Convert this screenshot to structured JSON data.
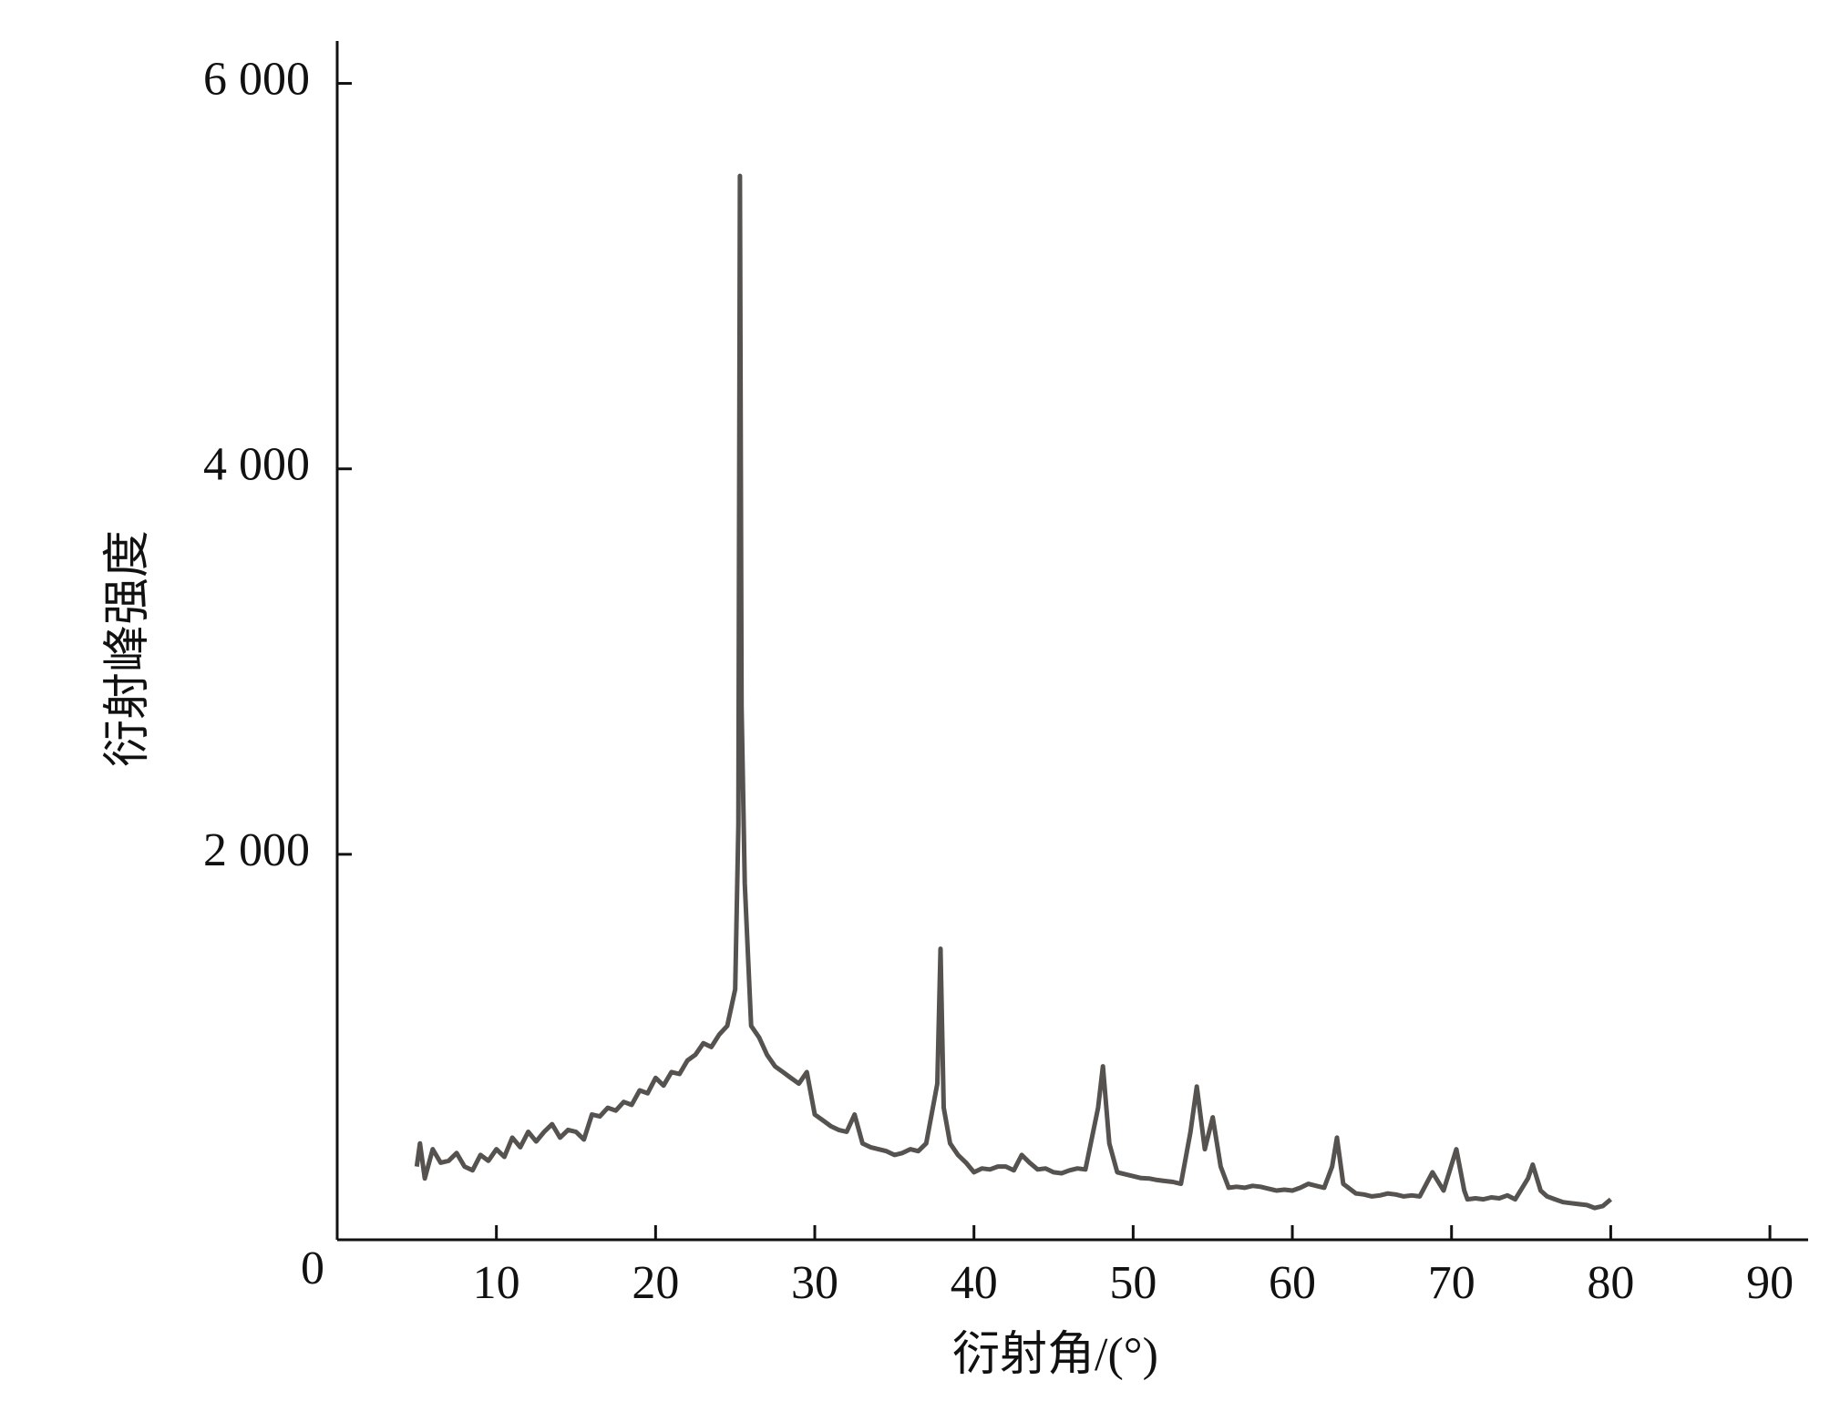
{
  "chart_data": {
    "type": "line",
    "x_label": "衍射角/(°)",
    "y_label": "衍射峰强度",
    "xlim": [
      0,
      92.4
    ],
    "ylim": [
      0,
      6220
    ],
    "xticks": [
      10,
      20,
      30,
      40,
      50,
      60,
      70,
      80,
      90
    ],
    "yticks": [
      0,
      {
        "value": 2000,
        "label": "2 000"
      },
      {
        "value": 4000,
        "label": "4 000"
      },
      {
        "value": 6000,
        "label": "6 000"
      }
    ],
    "series": [
      {
        "name": null,
        "color": "#55524f",
        "x": [
          5,
          5.2,
          5.5,
          6,
          6.5,
          7,
          7.5,
          8,
          8.5,
          9,
          9.5,
          10,
          10.5,
          11,
          11.5,
          12,
          12.5,
          13,
          13.5,
          14,
          14.5,
          15,
          15.5,
          16,
          16.5,
          17,
          17.5,
          18,
          18.5,
          19,
          19.5,
          20,
          20.5,
          21,
          21.5,
          22,
          22.5,
          23,
          23.5,
          24,
          24.5,
          25,
          25.2,
          25.3,
          25.4,
          25.6,
          26,
          26.5,
          27,
          27.5,
          28,
          28.5,
          29,
          29.5,
          30,
          30.5,
          31,
          31.5,
          32,
          32.5,
          33,
          33.5,
          34,
          34.5,
          35,
          35.5,
          36,
          36.5,
          37,
          37.7,
          37.9,
          38.1,
          38.5,
          39,
          39.5,
          40,
          40.5,
          41,
          41.5,
          42,
          42.5,
          43,
          43.5,
          44,
          44.5,
          45,
          45.5,
          46,
          46.5,
          47,
          47.8,
          48.1,
          48.5,
          49,
          49.5,
          50,
          50.5,
          51,
          51.5,
          52,
          52.5,
          53,
          53.6,
          54,
          54.5,
          55,
          55.5,
          56,
          56.5,
          57,
          57.5,
          58,
          58.5,
          59,
          59.5,
          60,
          60.5,
          61,
          61.5,
          62,
          62.5,
          62.8,
          63.2,
          64,
          64.5,
          65,
          65.5,
          66,
          66.5,
          67,
          67.5,
          68,
          68.8,
          69.5,
          70.3,
          70.8,
          71,
          71.5,
          72,
          72.5,
          73,
          73.5,
          74,
          74.8,
          75.1,
          75.6,
          76,
          76.5,
          77,
          77.5,
          78,
          78.5,
          79,
          79.5,
          80
        ],
        "values": [
          380,
          500,
          318,
          470,
          400,
          410,
          450,
          380,
          360,
          440,
          410,
          470,
          430,
          530,
          480,
          560,
          510,
          560,
          600,
          530,
          570,
          560,
          520,
          650,
          640,
          685,
          670,
          715,
          700,
          775,
          760,
          840,
          800,
          870,
          860,
          930,
          960,
          1020,
          1000,
          1065,
          1110,
          1300,
          2150,
          5520,
          2765,
          1850,
          1110,
          1050,
          960,
          900,
          870,
          840,
          810,
          870,
          650,
          620,
          590,
          570,
          560,
          650,
          500,
          480,
          470,
          460,
          440,
          450,
          470,
          460,
          500,
          810,
          1510,
          685,
          500,
          440,
          400,
          350,
          370,
          365,
          380,
          380,
          360,
          440,
          400,
          365,
          370,
          350,
          345,
          360,
          370,
          365,
          685,
          900,
          500,
          350,
          340,
          330,
          320,
          318,
          310,
          305,
          300,
          290,
          560,
          795,
          470,
          635,
          380,
          270,
          275,
          270,
          280,
          275,
          265,
          255,
          260,
          255,
          270,
          290,
          280,
          270,
          380,
          530,
          290,
          240,
          235,
          225,
          230,
          240,
          235,
          225,
          230,
          225,
          350,
          255,
          470,
          255,
          210,
          215,
          210,
          220,
          215,
          230,
          210,
          318,
          390,
          255,
          225,
          210,
          195,
          190,
          185,
          180,
          165,
          175,
          210
        ]
      }
    ]
  }
}
